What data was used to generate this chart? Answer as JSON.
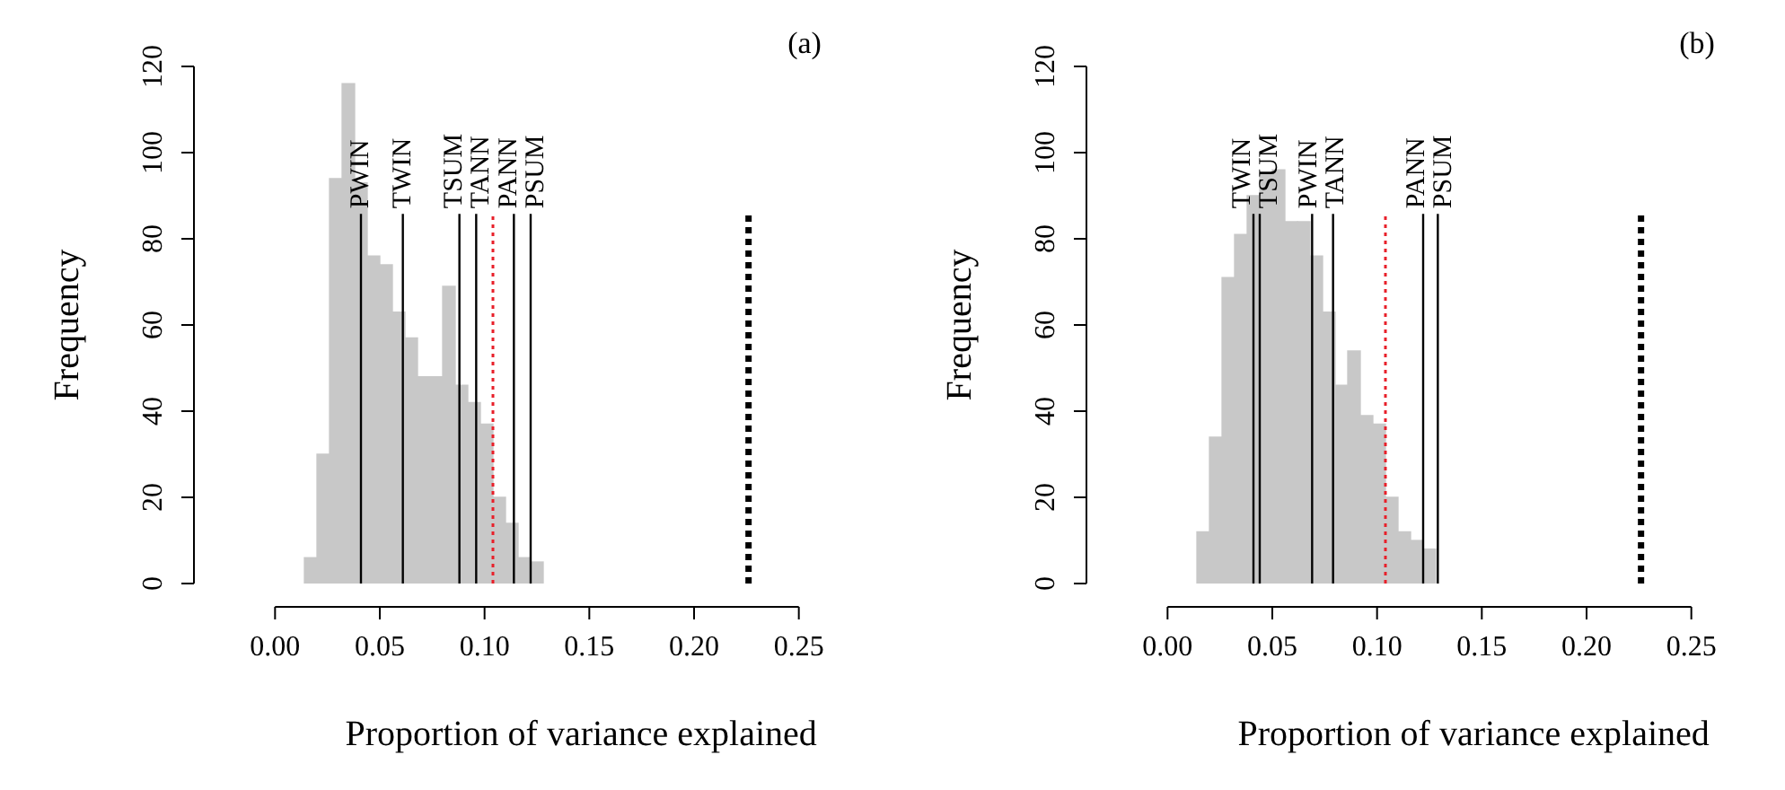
{
  "chart_data": [
    {
      "type": "histogram",
      "title": "(a)",
      "xlabel": "Proportion of variance explained",
      "ylabel": "Frequency",
      "bins": [
        0.014,
        0.02,
        0.026,
        0.032,
        0.038,
        0.044,
        0.05,
        0.056,
        0.062,
        0.068,
        0.074,
        0.08,
        0.086,
        0.092,
        0.098,
        0.104,
        0.11,
        0.116,
        0.122,
        0.128
      ],
      "values": [
        6,
        30,
        94,
        116,
        93,
        76,
        74,
        63,
        57,
        48,
        48,
        69,
        46,
        42,
        37,
        20,
        14,
        6,
        5
      ],
      "color": "#c8c8c8",
      "xlim": [
        0,
        0.25
      ],
      "ylim": [
        0,
        120
      ],
      "xticks": [
        {
          "value": 0,
          "label": "0.00"
        },
        {
          "value": 0.05,
          "label": "0.05"
        },
        {
          "value": 0.1,
          "label": "0.10"
        },
        {
          "value": 0.15,
          "label": "0.15"
        },
        {
          "value": 0.2,
          "label": "0.20"
        },
        {
          "value": 0.25,
          "label": "0.25"
        }
      ],
      "yticks": [
        0,
        20,
        40,
        60,
        80,
        100,
        120
      ],
      "ref_lines": [
        {
          "axis": "x",
          "value": 0.041,
          "label": "PWIN",
          "color": "#000000",
          "line_style": "solid"
        },
        {
          "axis": "x",
          "value": 0.061,
          "label": "TWIN",
          "color": "#000000",
          "line_style": "solid"
        },
        {
          "axis": "x",
          "value": 0.088,
          "label": "TSUM",
          "color": "#000000",
          "line_style": "solid"
        },
        {
          "axis": "x",
          "value": 0.096,
          "label": "TANN",
          "color": "#000000",
          "line_style": "solid"
        },
        {
          "axis": "x",
          "value": 0.104,
          "label": null,
          "color": "#e8202a",
          "line_style": "dotted"
        },
        {
          "axis": "x",
          "value": 0.114,
          "label": "PANN",
          "color": "#000000",
          "line_style": "solid"
        },
        {
          "axis": "x",
          "value": 0.122,
          "label": "PSUM",
          "color": "#000000",
          "line_style": "solid"
        },
        {
          "axis": "x",
          "value": 0.226,
          "label": null,
          "color": "#000000",
          "line_style": "dotted"
        }
      ],
      "grid": false,
      "legend": false
    },
    {
      "type": "histogram",
      "title": "(b)",
      "xlabel": "Proportion of variance explained",
      "ylabel": "Frequency",
      "bins": [
        0.014,
        0.02,
        0.026,
        0.032,
        0.038,
        0.044,
        0.05,
        0.056,
        0.062,
        0.068,
        0.074,
        0.08,
        0.086,
        0.092,
        0.098,
        0.104,
        0.11,
        0.116,
        0.122,
        0.128
      ],
      "values": [
        12,
        34,
        71,
        81,
        90,
        95,
        96,
        84,
        84,
        76,
        63,
        46,
        54,
        39,
        37,
        20,
        12,
        10,
        8
      ],
      "color": "#c8c8c8",
      "xlim": [
        0,
        0.25
      ],
      "ylim": [
        0,
        120
      ],
      "xticks": [
        {
          "value": 0,
          "label": "0.00"
        },
        {
          "value": 0.05,
          "label": "0.05"
        },
        {
          "value": 0.1,
          "label": "0.10"
        },
        {
          "value": 0.15,
          "label": "0.15"
        },
        {
          "value": 0.2,
          "label": "0.20"
        },
        {
          "value": 0.25,
          "label": "0.25"
        }
      ],
      "yticks": [
        0,
        20,
        40,
        60,
        80,
        100,
        120
      ],
      "ref_lines": [
        {
          "axis": "x",
          "value": 0.041,
          "label": "TWIN",
          "color": "#000000",
          "line_style": "solid"
        },
        {
          "axis": "x",
          "value": 0.044,
          "label": "TSUM",
          "color": "#000000",
          "line_style": "solid"
        },
        {
          "axis": "x",
          "value": 0.069,
          "label": "PWIN",
          "color": "#000000",
          "line_style": "solid"
        },
        {
          "axis": "x",
          "value": 0.079,
          "label": "TANN",
          "color": "#000000",
          "line_style": "solid"
        },
        {
          "axis": "x",
          "value": 0.104,
          "label": null,
          "color": "#e8202a",
          "line_style": "dotted"
        },
        {
          "axis": "x",
          "value": 0.122,
          "label": "PANN",
          "color": "#000000",
          "line_style": "solid"
        },
        {
          "axis": "x",
          "value": 0.129,
          "label": "PSUM",
          "color": "#000000",
          "line_style": "solid"
        },
        {
          "axis": "x",
          "value": 0.226,
          "label": null,
          "color": "#000000",
          "line_style": "dotted"
        }
      ],
      "grid": false,
      "legend": false
    }
  ]
}
